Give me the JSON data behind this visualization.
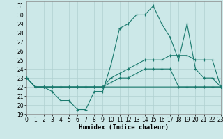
{
  "xlabel": "Humidex (Indice chaleur)",
  "x": [
    0,
    1,
    2,
    3,
    4,
    5,
    6,
    7,
    8,
    9,
    10,
    11,
    12,
    13,
    14,
    15,
    16,
    17,
    18,
    19,
    20,
    21,
    22,
    23
  ],
  "line1": [
    23,
    22,
    22,
    21.5,
    20.5,
    20.5,
    19.5,
    19.5,
    21.5,
    21.5,
    24.5,
    28.5,
    29,
    30,
    30,
    31,
    29,
    27.5,
    25,
    29,
    24,
    23,
    23,
    22
  ],
  "line2": [
    23,
    22,
    22,
    22,
    22,
    22,
    22,
    22,
    22,
    22,
    23,
    23.5,
    24,
    24.5,
    25,
    25,
    25,
    25.5,
    25.5,
    25.5,
    25,
    25,
    25,
    22
  ],
  "line3": [
    23,
    22,
    22,
    22,
    22,
    22,
    22,
    22,
    22,
    22,
    22.5,
    23,
    23,
    23.5,
    24,
    24,
    24,
    24,
    22,
    22,
    22,
    22,
    22,
    22
  ],
  "line4": [
    23,
    22,
    22,
    22,
    22,
    22,
    22,
    22,
    22,
    22,
    22,
    22,
    22,
    22,
    22,
    22,
    22,
    22,
    22,
    22,
    22,
    22,
    22,
    22
  ],
  "ylim": [
    19,
    31.5
  ],
  "xlim": [
    0,
    23
  ],
  "yticks": [
    19,
    20,
    21,
    22,
    23,
    24,
    25,
    26,
    27,
    28,
    29,
    30,
    31
  ],
  "xticks": [
    0,
    1,
    2,
    3,
    4,
    5,
    6,
    7,
    8,
    9,
    10,
    11,
    12,
    13,
    14,
    15,
    16,
    17,
    18,
    19,
    20,
    21,
    22,
    23
  ],
  "line_color": "#1a7a6e",
  "bg_color": "#cce8e8",
  "grid_color": "#b0d0d0",
  "tick_fontsize": 5.5,
  "xlabel_fontsize": 6.5
}
